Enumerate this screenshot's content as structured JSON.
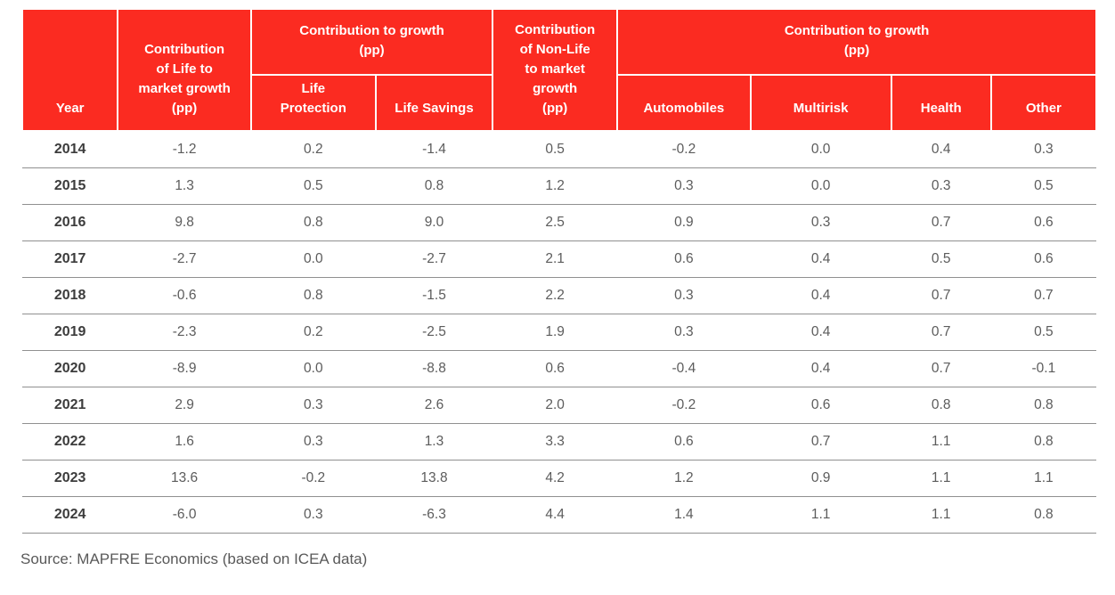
{
  "table": {
    "header": {
      "year": "Year",
      "life_total": "Contribution\nof Life to\nmarket growth\n(pp)",
      "life_group": "Contribution to growth\n(pp)",
      "life_protection": "Life\nProtection",
      "life_savings": "Life Savings",
      "nonlife_total": "Contribution\nof Non-Life\nto market\ngrowth\n(pp)",
      "nonlife_group": "Contribution to growth\n(pp)",
      "automobiles": "Automobiles",
      "multirisk": "Multirisk",
      "health": "Health",
      "other": "Other"
    }
  },
  "figure": {
    "source_note": "Source: MAPFRE Economics (based on ICEA data)"
  },
  "colors": {
    "header_red": "#FB2B21",
    "header_text": "#FFFFFF",
    "year_text": "#3C3C3C",
    "value_text": "#5C5C5C",
    "row_line": "#909090"
  },
  "chart_data": {
    "type": "table",
    "columns": [
      "Year",
      "Contribution of Life to market growth (pp)",
      "Contribution to growth (pp) - Life Protection",
      "Contribution to growth (pp) - Life Savings",
      "Contribution of Non-Life to market growth (pp)",
      "Contribution to growth (pp) - Automobiles",
      "Contribution to growth (pp) - Multirisk",
      "Contribution to growth (pp) - Health",
      "Contribution to growth (pp) - Other"
    ],
    "rows": [
      [
        2014,
        -1.2,
        0.2,
        -1.4,
        0.5,
        -0.2,
        0.0,
        0.4,
        0.3
      ],
      [
        2015,
        1.3,
        0.5,
        0.8,
        1.2,
        0.3,
        0.0,
        0.3,
        0.5
      ],
      [
        2016,
        9.8,
        0.8,
        9.0,
        2.5,
        0.9,
        0.3,
        0.7,
        0.6
      ],
      [
        2017,
        -2.7,
        0.0,
        -2.7,
        2.1,
        0.6,
        0.4,
        0.5,
        0.6
      ],
      [
        2018,
        -0.6,
        0.8,
        -1.5,
        2.2,
        0.3,
        0.4,
        0.7,
        0.7
      ],
      [
        2019,
        -2.3,
        0.2,
        -2.5,
        1.9,
        0.3,
        0.4,
        0.7,
        0.5
      ],
      [
        2020,
        -8.9,
        0.0,
        -8.8,
        0.6,
        -0.4,
        0.4,
        0.7,
        -0.1
      ],
      [
        2021,
        2.9,
        0.3,
        2.6,
        2.0,
        -0.2,
        0.6,
        0.8,
        0.8
      ],
      [
        2022,
        1.6,
        0.3,
        1.3,
        3.3,
        0.6,
        0.7,
        1.1,
        0.8
      ],
      [
        2023,
        13.6,
        -0.2,
        13.8,
        4.2,
        1.2,
        0.9,
        1.1,
        1.1
      ],
      [
        2024,
        -6.0,
        0.3,
        -6.3,
        4.4,
        1.4,
        1.1,
        1.1,
        0.8
      ]
    ]
  }
}
